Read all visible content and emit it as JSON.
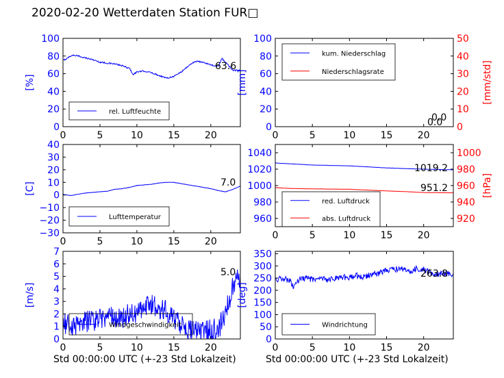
{
  "title": "2020-02-20 Wetterdaten Station FUR□",
  "xlabel": "Std 00:00:00 UTC (+-23 Std Lokalzeit)",
  "colors": {
    "primary": "#0000ff",
    "secondary": "#ff0000",
    "text": "#000000"
  },
  "chart_data": [
    {
      "type": "line",
      "ylabel": "[%]",
      "xlim": [
        0,
        24
      ],
      "ylim": [
        0,
        100
      ],
      "xticks": [
        0,
        5,
        10,
        15,
        20
      ],
      "yticks": [
        0,
        20,
        40,
        60,
        80,
        100
      ],
      "legend": {
        "placement": "lower-left",
        "entries": [
          "rel. Luftfeuchte"
        ]
      },
      "current_value": "63.6",
      "series": [
        {
          "name": "rel. Luftfeuchte",
          "color": "#0000ff",
          "noise": 0.8,
          "x": [
            0,
            0.5,
            1,
            1.5,
            2,
            3,
            4,
            5,
            6,
            7,
            8,
            9,
            9.5,
            10,
            11,
            12,
            13,
            14,
            15,
            16,
            17,
            17.5,
            18,
            19,
            20,
            21,
            21.5,
            22,
            23,
            24
          ],
          "y": [
            75,
            77,
            80,
            81,
            80,
            78,
            76,
            73,
            72,
            71,
            69,
            66,
            59,
            62,
            63,
            61,
            58,
            55,
            57,
            62,
            69,
            72,
            74,
            73,
            70,
            68,
            77,
            73,
            64,
            63.6
          ]
        }
      ]
    },
    {
      "type": "line",
      "ylabel": "[mm]",
      "ylabel_right": "[mm/std]",
      "xlim": [
        0,
        24
      ],
      "ylim": [
        0,
        100
      ],
      "ylim_right": [
        0,
        50
      ],
      "xticks": [
        0,
        5,
        10,
        15,
        20
      ],
      "yticks": [
        0,
        20,
        40,
        60,
        80,
        100
      ],
      "yticks_right": [
        0,
        10,
        20,
        30,
        40,
        50
      ],
      "legend": {
        "placement": "upper-left",
        "entries": [
          "kum. Niederschlag",
          "Niederschlagsrate"
        ]
      },
      "current_value": "0.0",
      "current_value_right": "0.0",
      "series": [
        {
          "name": "kum. Niederschlag",
          "color": "#0000ff",
          "axis": "left",
          "noise": 0,
          "x": [
            0,
            24
          ],
          "y": [
            0,
            0
          ]
        },
        {
          "name": "Niederschlagsrate",
          "color": "#ff0000",
          "axis": "right",
          "noise": 0,
          "x": [
            0,
            24
          ],
          "y": [
            0,
            0
          ]
        }
      ]
    },
    {
      "type": "line",
      "ylabel": "[C]",
      "xlim": [
        0,
        24
      ],
      "ylim": [
        -30,
        40
      ],
      "xticks": [
        0,
        5,
        10,
        15,
        20
      ],
      "yticks": [
        -30,
        -20,
        -10,
        0,
        10,
        20,
        30,
        40
      ],
      "legend": {
        "placement": "lower-left",
        "entries": [
          "Lufttemperatur"
        ]
      },
      "current_value": "7.0",
      "series": [
        {
          "name": "Lufttemperatur",
          "color": "#0000ff",
          "noise": 0.15,
          "x": [
            0,
            1,
            2,
            3,
            4,
            5,
            6,
            7,
            8,
            9,
            10,
            11,
            12,
            13,
            14,
            15,
            16,
            17,
            18,
            19,
            20,
            21,
            22,
            23,
            24
          ],
          "y": [
            0.5,
            -0.5,
            0.5,
            1.5,
            2,
            2.5,
            3,
            4.5,
            5,
            6,
            7.5,
            8,
            8.5,
            9.5,
            10,
            10,
            9,
            8,
            7,
            6,
            5,
            3.5,
            2.5,
            4.5,
            7
          ]
        }
      ]
    },
    {
      "type": "line",
      "ylabel_right": "[hPa]",
      "xlim": [
        0,
        24
      ],
      "ylim": [
        950,
        1050
      ],
      "ylim_right": [
        910,
        1010
      ],
      "xticks": [
        0,
        5,
        10,
        15,
        20
      ],
      "yticks": [
        960,
        980,
        1000,
        1020,
        1040
      ],
      "yticks_right": [
        920,
        940,
        960,
        980,
        1000
      ],
      "legend": {
        "placement": "lower-left",
        "entries": [
          "red. Luftdruck",
          "abs. Luftdruck"
        ]
      },
      "current_value": "1019.2",
      "current_value_right": "951.2",
      "series": [
        {
          "name": "red. Luftdruck",
          "color": "#0000ff",
          "axis": "left",
          "noise": 0.15,
          "x": [
            0,
            2,
            5,
            10,
            15,
            18,
            20,
            24
          ],
          "y": [
            1027.5,
            1026.5,
            1025,
            1024,
            1021.5,
            1020.5,
            1020,
            1019.2
          ]
        },
        {
          "name": "abs. Luftdruck",
          "color": "#ff0000",
          "axis": "right",
          "noise": 0.12,
          "x": [
            0,
            2,
            5,
            10,
            15,
            18,
            20,
            24
          ],
          "y": [
            957.5,
            956.5,
            956,
            955.5,
            953.5,
            952.5,
            951.5,
            951.2
          ]
        }
      ]
    },
    {
      "type": "line",
      "ylabel": "[m/s]",
      "xlim": [
        0,
        24
      ],
      "ylim": [
        0,
        7
      ],
      "xticks": [
        0,
        5,
        10,
        15,
        20
      ],
      "yticks": [
        0,
        1,
        2,
        3,
        4,
        5,
        6,
        7
      ],
      "legend": {
        "placement": "lower-left",
        "entries": [
          "Windgeschwindigkeit"
        ]
      },
      "current_value": "5.0",
      "series": [
        {
          "name": "Windgeschwindigkeit",
          "color": "#0000ff",
          "noise": 0.9,
          "x": [
            0,
            1,
            2,
            3,
            4,
            5,
            6,
            7,
            8,
            9,
            10,
            11,
            12,
            13,
            14,
            15,
            16,
            17,
            18,
            19,
            20,
            21,
            22,
            23,
            24
          ],
          "y": [
            1.4,
            0.9,
            1.1,
            1.3,
            1.5,
            1.6,
            1.9,
            1.7,
            1.6,
            2.0,
            2.1,
            2.5,
            2.8,
            2.5,
            2.2,
            1.7,
            1.1,
            0.6,
            0.9,
            0.6,
            0.8,
            0.7,
            2.2,
            4.2,
            5.0
          ]
        }
      ]
    },
    {
      "type": "line",
      "ylabel": "[deg]",
      "xlim": [
        0,
        24
      ],
      "ylim": [
        0,
        360
      ],
      "xticks": [
        0,
        5,
        10,
        15,
        20
      ],
      "yticks": [
        0,
        50,
        100,
        150,
        200,
        250,
        300,
        350
      ],
      "legend": {
        "placement": "lower-left",
        "entries": [
          "Windrichtung"
        ]
      },
      "current_value": "263.8",
      "series": [
        {
          "name": "Windrichtung",
          "color": "#0000ff",
          "noise": 12,
          "x": [
            0,
            1,
            2,
            2.5,
            3,
            4,
            5,
            6,
            7,
            8,
            9,
            10,
            11,
            12,
            13,
            14,
            15,
            16,
            17,
            18,
            19,
            20,
            21,
            22,
            23,
            24
          ],
          "y": [
            245,
            248,
            240,
            210,
            240,
            250,
            245,
            250,
            240,
            250,
            255,
            250,
            260,
            255,
            265,
            270,
            280,
            285,
            290,
            275,
            290,
            285,
            270,
            265,
            270,
            263.8
          ]
        }
      ]
    }
  ]
}
